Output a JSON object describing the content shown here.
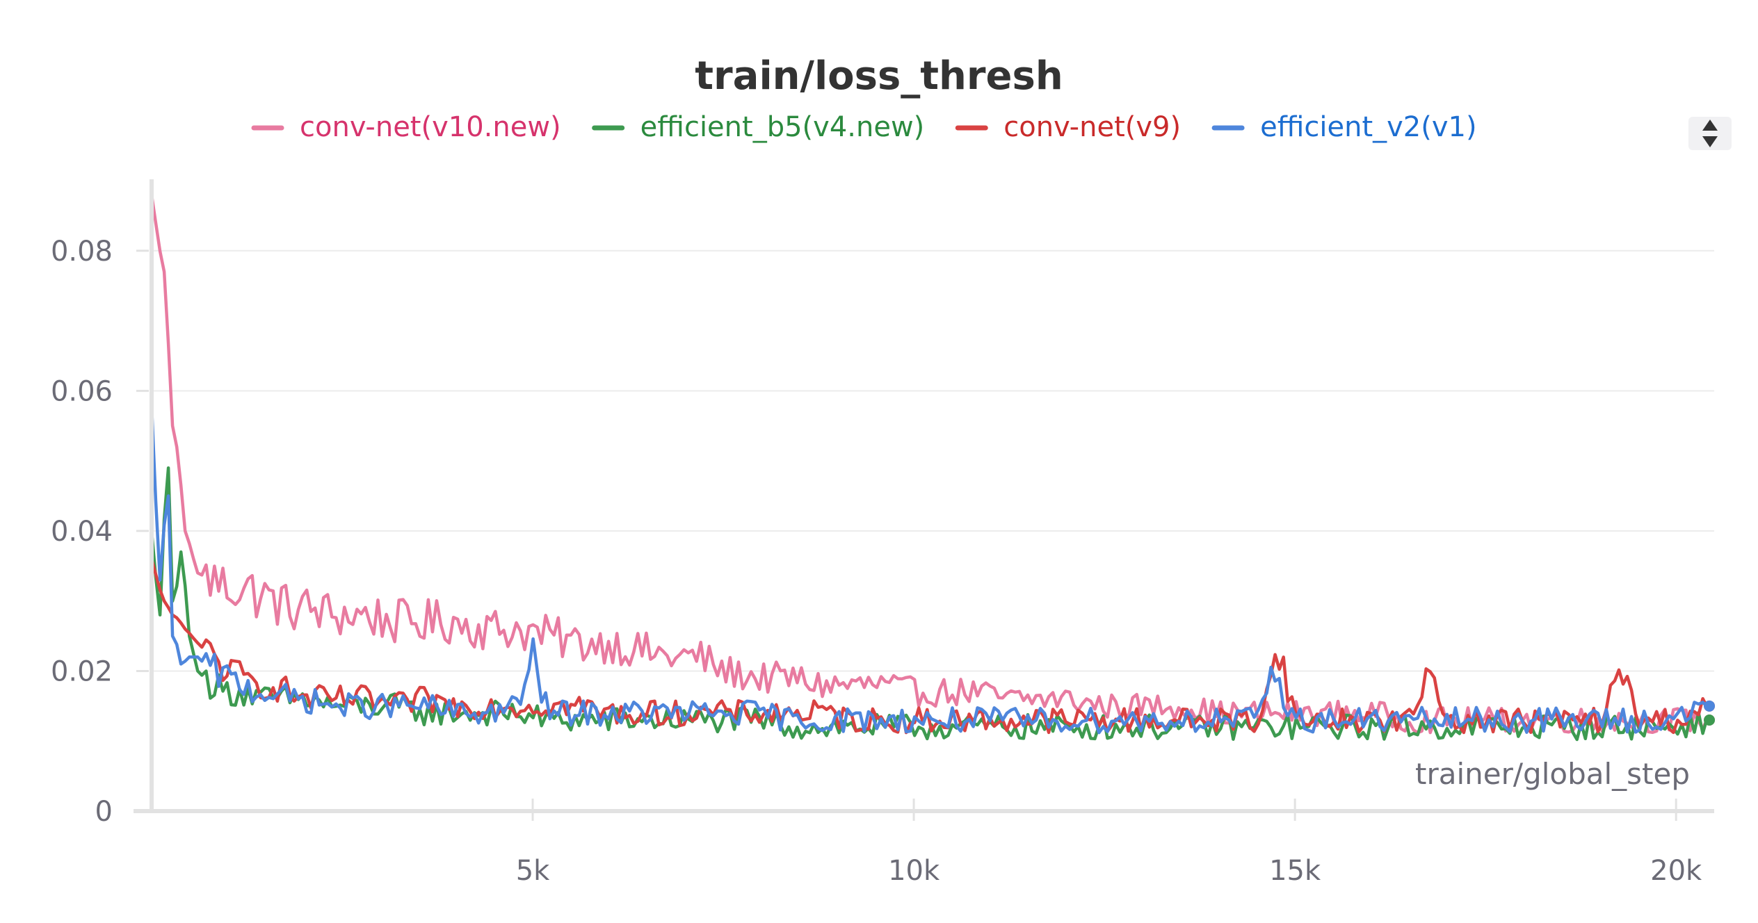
{
  "chart_data": {
    "type": "line",
    "title": "train/loss_thresh",
    "xlabel": "trainer/global_step",
    "ylabel": "",
    "xlim": [
      0,
      20500
    ],
    "ylim": [
      0,
      0.09
    ],
    "xticks": [
      5000,
      10000,
      15000,
      20000
    ],
    "xtick_labels": [
      "5k",
      "10k",
      "15k",
      "20k"
    ],
    "yticks": [
      0,
      0.02,
      0.04,
      0.06,
      0.08
    ],
    "ytick_labels": [
      "0",
      "0.02",
      "0.04",
      "0.06",
      "0.08"
    ],
    "grid": true,
    "legend_position": "top",
    "series": [
      {
        "name": "conv-net(v10.new)",
        "color": "#e87ba0",
        "legend_text_color": "#d6336c",
        "x": [
          0,
          150,
          300,
          450,
          600,
          800,
          1000,
          1200,
          1400,
          1600,
          1800,
          2000,
          2400,
          2800,
          3200,
          3600,
          4000,
          4400,
          4800,
          5200,
          5600,
          6000,
          6400,
          6800,
          7200,
          7500,
          8000,
          8400,
          8800,
          9200,
          9600,
          10000,
          10400,
          10800,
          11200,
          11600,
          12000,
          12500,
          13000,
          13500,
          14000,
          14500,
          15000,
          15500,
          16000,
          16500,
          17000,
          17500,
          18000,
          18500,
          19000,
          19500,
          20000,
          20400
        ],
        "y": [
          0.088,
          0.077,
          0.055,
          0.04,
          0.034,
          0.033,
          0.032,
          0.032,
          0.031,
          0.03,
          0.029,
          0.029,
          0.028,
          0.028,
          0.027,
          0.027,
          0.027,
          0.026,
          0.026,
          0.025,
          0.024,
          0.024,
          0.023,
          0.022,
          0.022,
          0.02,
          0.019,
          0.019,
          0.018,
          0.018,
          0.018,
          0.017,
          0.017,
          0.017,
          0.016,
          0.016,
          0.016,
          0.015,
          0.015,
          0.015,
          0.014,
          0.014,
          0.014,
          0.014,
          0.014,
          0.013,
          0.013,
          0.013,
          0.013,
          0.013,
          0.013,
          0.013,
          0.013,
          0.013
        ]
      },
      {
        "name": "efficient_b5(v4.new)",
        "color": "#3d9a50",
        "legend_text_color": "#2b8a3e",
        "x": [
          0,
          100,
          200,
          300,
          400,
          500,
          600,
          800,
          1000,
          1200,
          1400,
          1600,
          1800,
          2000,
          2400,
          2800,
          3200,
          3600,
          4000,
          4400,
          4800,
          5200,
          5600,
          6000,
          6400,
          6800,
          7200,
          7600,
          8000,
          8400,
          8800,
          9200,
          9600,
          10000,
          10500,
          11000,
          11500,
          12000,
          12500,
          13000,
          13500,
          14000,
          14500,
          15000,
          15500,
          16000,
          16500,
          17000,
          17500,
          18000,
          18500,
          19000,
          19500,
          20000,
          20400
        ],
        "y": [
          0.04,
          0.028,
          0.049,
          0.03,
          0.037,
          0.025,
          0.02,
          0.018,
          0.017,
          0.017,
          0.016,
          0.016,
          0.016,
          0.016,
          0.015,
          0.015,
          0.015,
          0.014,
          0.014,
          0.014,
          0.014,
          0.013,
          0.013,
          0.013,
          0.013,
          0.013,
          0.013,
          0.013,
          0.013,
          0.012,
          0.012,
          0.012,
          0.012,
          0.012,
          0.012,
          0.012,
          0.012,
          0.012,
          0.012,
          0.012,
          0.012,
          0.012,
          0.012,
          0.012,
          0.012,
          0.012,
          0.012,
          0.012,
          0.012,
          0.012,
          0.012,
          0.012,
          0.012,
          0.012,
          0.013
        ]
      },
      {
        "name": "conv-net(v9)",
        "color": "#d94242",
        "legend_text_color": "#c92a2a",
        "x": [
          0,
          150,
          300,
          450,
          600,
          800,
          1000,
          1200,
          1400,
          1600,
          1800,
          2000,
          2400,
          2800,
          3200,
          3600,
          4000,
          4400,
          4800,
          5200,
          5600,
          6000,
          6400,
          6800,
          7200,
          7600,
          8000,
          8400,
          8800,
          9200,
          9600,
          10000,
          10500,
          11000,
          11500,
          12000,
          12500,
          13000,
          13500,
          14000,
          14500,
          14800,
          15000,
          15500,
          16000,
          16500,
          16800,
          17000,
          17500,
          18000,
          18500,
          19000,
          19300,
          19500,
          20000,
          20400
        ],
        "y": [
          0.036,
          0.03,
          0.028,
          0.026,
          0.024,
          0.022,
          0.02,
          0.019,
          0.018,
          0.018,
          0.017,
          0.016,
          0.016,
          0.016,
          0.015,
          0.016,
          0.015,
          0.015,
          0.015,
          0.015,
          0.015,
          0.014,
          0.014,
          0.014,
          0.014,
          0.014,
          0.014,
          0.014,
          0.014,
          0.013,
          0.013,
          0.013,
          0.013,
          0.013,
          0.013,
          0.013,
          0.013,
          0.013,
          0.013,
          0.013,
          0.013,
          0.023,
          0.013,
          0.013,
          0.013,
          0.013,
          0.02,
          0.013,
          0.013,
          0.013,
          0.013,
          0.013,
          0.02,
          0.013,
          0.013,
          0.015
        ]
      },
      {
        "name": "efficient_v2(v1)",
        "color": "#4e86dc",
        "legend_text_color": "#1c6dd0",
        "x": [
          0,
          100,
          200,
          300,
          400,
          500,
          600,
          800,
          1000,
          1200,
          1400,
          1600,
          1800,
          2000,
          2400,
          2800,
          3200,
          3600,
          4000,
          4400,
          4800,
          5000,
          5200,
          5600,
          6000,
          6400,
          6800,
          7200,
          7600,
          8000,
          8400,
          8800,
          9200,
          9600,
          10000,
          10500,
          11000,
          11500,
          12000,
          12500,
          13000,
          13500,
          14000,
          14500,
          14700,
          15000,
          15500,
          16000,
          16500,
          17000,
          17500,
          18000,
          18500,
          19000,
          19500,
          20000,
          20400
        ],
        "y": [
          0.058,
          0.033,
          0.045,
          0.025,
          0.021,
          0.022,
          0.022,
          0.02,
          0.019,
          0.018,
          0.017,
          0.017,
          0.016,
          0.016,
          0.015,
          0.015,
          0.015,
          0.015,
          0.014,
          0.014,
          0.015,
          0.022,
          0.014,
          0.014,
          0.014,
          0.014,
          0.014,
          0.014,
          0.014,
          0.014,
          0.013,
          0.013,
          0.013,
          0.013,
          0.013,
          0.013,
          0.013,
          0.013,
          0.013,
          0.013,
          0.013,
          0.013,
          0.013,
          0.013,
          0.02,
          0.013,
          0.013,
          0.013,
          0.013,
          0.013,
          0.013,
          0.013,
          0.013,
          0.013,
          0.013,
          0.013,
          0.015
        ]
      }
    ]
  },
  "legend": {
    "scroll_control_icon": "sort-up-down-icon"
  }
}
